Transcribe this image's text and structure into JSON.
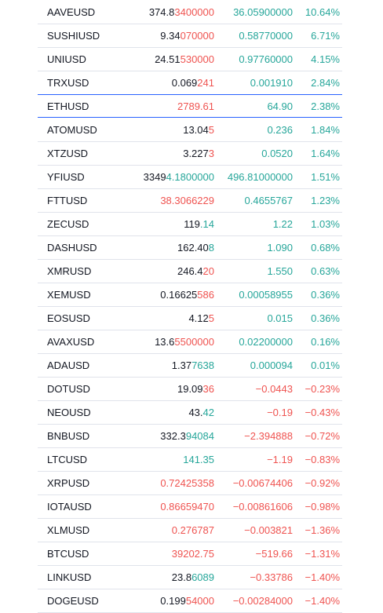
{
  "table": {
    "rows": [
      {
        "symbol": "AAVEUSD",
        "price": [
          {
            "text": "374.8",
            "color": "#131722"
          },
          {
            "text": "3400000",
            "color": "#ef5350"
          }
        ],
        "change": "36.05900000",
        "percent": "10.64%",
        "color": "#26a69a"
      },
      {
        "symbol": "SUSHIUSD",
        "price": [
          {
            "text": "9.34",
            "color": "#131722"
          },
          {
            "text": "070000",
            "color": "#ef5350"
          }
        ],
        "change": "0.58770000",
        "percent": "6.71%",
        "color": "#26a69a"
      },
      {
        "symbol": "UNIUSD",
        "price": [
          {
            "text": "24.51",
            "color": "#131722"
          },
          {
            "text": "530000",
            "color": "#ef5350"
          }
        ],
        "change": "0.97760000",
        "percent": "4.15%",
        "color": "#26a69a"
      },
      {
        "symbol": "TRXUSD",
        "price": [
          {
            "text": "0.069",
            "color": "#131722"
          },
          {
            "text": "241",
            "color": "#ef5350"
          }
        ],
        "change": "0.001910",
        "percent": "2.84%",
        "color": "#26a69a"
      },
      {
        "symbol": "ETHUSD",
        "price": [
          {
            "text": "2789.61",
            "color": "#ef5350"
          }
        ],
        "change": "64.90",
        "percent": "2.38%",
        "color": "#26a69a",
        "selected": true
      },
      {
        "symbol": "ATOMUSD",
        "price": [
          {
            "text": "13.04",
            "color": "#131722"
          },
          {
            "text": "5",
            "color": "#ef5350"
          }
        ],
        "change": "0.236",
        "percent": "1.84%",
        "color": "#26a69a"
      },
      {
        "symbol": "XTZUSD",
        "price": [
          {
            "text": "3.227",
            "color": "#131722"
          },
          {
            "text": "3",
            "color": "#ef5350"
          }
        ],
        "change": "0.0520",
        "percent": "1.64%",
        "color": "#26a69a"
      },
      {
        "symbol": "YFIUSD",
        "price": [
          {
            "text": "3349",
            "color": "#131722"
          },
          {
            "text": "4.1800000",
            "color": "#26a69a"
          }
        ],
        "change": "496.81000000",
        "percent": "1.51%",
        "color": "#26a69a"
      },
      {
        "symbol": "FTTUSD",
        "price": [
          {
            "text": "38.3066229",
            "color": "#ef5350"
          }
        ],
        "change": "0.4655767",
        "percent": "1.23%",
        "color": "#26a69a"
      },
      {
        "symbol": "ZECUSD",
        "price": [
          {
            "text": "119",
            "color": "#131722"
          },
          {
            "text": ".14",
            "color": "#26a69a"
          }
        ],
        "change": "1.22",
        "percent": "1.03%",
        "color": "#26a69a"
      },
      {
        "symbol": "DASHUSD",
        "price": [
          {
            "text": "162.40",
            "color": "#131722"
          },
          {
            "text": "8",
            "color": "#26a69a"
          }
        ],
        "change": "1.090",
        "percent": "0.68%",
        "color": "#26a69a"
      },
      {
        "symbol": "XMRUSD",
        "price": [
          {
            "text": "246.4",
            "color": "#131722"
          },
          {
            "text": "20",
            "color": "#ef5350"
          }
        ],
        "change": "1.550",
        "percent": "0.63%",
        "color": "#26a69a"
      },
      {
        "symbol": "XEMUSD",
        "price": [
          {
            "text": "0.16625",
            "color": "#131722"
          },
          {
            "text": "586",
            "color": "#ef5350"
          }
        ],
        "change": "0.00058955",
        "percent": "0.36%",
        "color": "#26a69a"
      },
      {
        "symbol": "EOSUSD",
        "price": [
          {
            "text": "4.12",
            "color": "#131722"
          },
          {
            "text": "5",
            "color": "#ef5350"
          }
        ],
        "change": "0.015",
        "percent": "0.36%",
        "color": "#26a69a"
      },
      {
        "symbol": "AVAXUSD",
        "price": [
          {
            "text": "13.6",
            "color": "#131722"
          },
          {
            "text": "5500000",
            "color": "#ef5350"
          }
        ],
        "change": "0.02200000",
        "percent": "0.16%",
        "color": "#26a69a"
      },
      {
        "symbol": "ADAUSD",
        "price": [
          {
            "text": "1.37",
            "color": "#131722"
          },
          {
            "text": "7638",
            "color": "#26a69a"
          }
        ],
        "change": "0.000094",
        "percent": "0.01%",
        "color": "#26a69a"
      },
      {
        "symbol": "DOTUSD",
        "price": [
          {
            "text": "19.09",
            "color": "#131722"
          },
          {
            "text": "36",
            "color": "#ef5350"
          }
        ],
        "change": "−0.0443",
        "percent": "−0.23%",
        "color": "#ef5350"
      },
      {
        "symbol": "NEOUSD",
        "price": [
          {
            "text": "43.",
            "color": "#131722"
          },
          {
            "text": "42",
            "color": "#26a69a"
          }
        ],
        "change": "−0.19",
        "percent": "−0.43%",
        "color": "#ef5350"
      },
      {
        "symbol": "BNBUSD",
        "price": [
          {
            "text": "332.3",
            "color": "#131722"
          },
          {
            "text": "94084",
            "color": "#26a69a"
          }
        ],
        "change": "−2.394888",
        "percent": "−0.72%",
        "color": "#ef5350"
      },
      {
        "symbol": "LTCUSD",
        "price": [
          {
            "text": "141.35",
            "color": "#26a69a"
          }
        ],
        "change": "−1.19",
        "percent": "−0.83%",
        "color": "#ef5350"
      },
      {
        "symbol": "XRPUSD",
        "price": [
          {
            "text": "0.72425358",
            "color": "#ef5350"
          }
        ],
        "change": "−0.00674406",
        "percent": "−0.92%",
        "color": "#ef5350"
      },
      {
        "symbol": "IOTAUSD",
        "price": [
          {
            "text": "0.86659470",
            "color": "#ef5350"
          }
        ],
        "change": "−0.00861606",
        "percent": "−0.98%",
        "color": "#ef5350"
      },
      {
        "symbol": "XLMUSD",
        "price": [
          {
            "text": "0.276787",
            "color": "#ef5350"
          }
        ],
        "change": "−0.003821",
        "percent": "−1.36%",
        "color": "#ef5350"
      },
      {
        "symbol": "BTCUSD",
        "price": [
          {
            "text": "39202.75",
            "color": "#ef5350"
          }
        ],
        "change": "−519.66",
        "percent": "−1.31%",
        "color": "#ef5350"
      },
      {
        "symbol": "LINKUSD",
        "price": [
          {
            "text": "23.8",
            "color": "#131722"
          },
          {
            "text": "6089",
            "color": "#26a69a"
          }
        ],
        "change": "−0.33786",
        "percent": "−1.40%",
        "color": "#ef5350"
      },
      {
        "symbol": "DOGEUSD",
        "price": [
          {
            "text": "0.199",
            "color": "#131722"
          },
          {
            "text": "54000",
            "color": "#ef5350"
          }
        ],
        "change": "−0.00284000",
        "percent": "−1.40%",
        "color": "#ef5350"
      }
    ]
  }
}
